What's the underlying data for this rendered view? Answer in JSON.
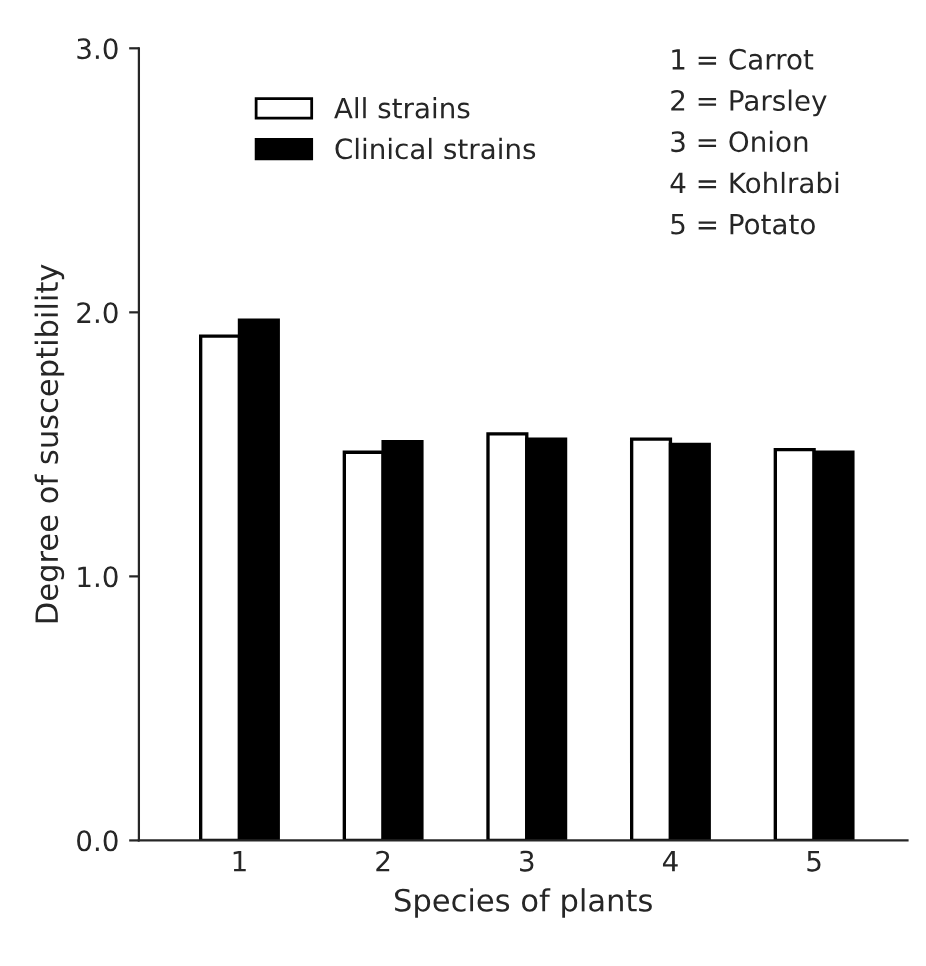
{
  "chart_data": {
    "type": "bar",
    "xlabel": "Species of plants",
    "ylabel": "Degree of susceptibility",
    "categories": [
      "1",
      "2",
      "3",
      "4",
      "5"
    ],
    "series": [
      {
        "name": "All strains",
        "color": "#ffffff",
        "values": [
          1.91,
          1.47,
          1.54,
          1.52,
          1.48
        ]
      },
      {
        "name": "Clinical strains",
        "color": "#000000",
        "values": [
          1.97,
          1.51,
          1.52,
          1.5,
          1.47
        ]
      }
    ],
    "ylim": [
      0,
      3
    ],
    "yticks": [
      {
        "value": 0,
        "label": "0.0"
      },
      {
        "value": 1,
        "label": "1.0"
      },
      {
        "value": 2,
        "label": "2.0"
      },
      {
        "value": 3,
        "label": "3.0"
      }
    ],
    "grid": false,
    "legend": "top left",
    "annotations": [
      "1 = Carrot",
      "2 = Parsley",
      "3 = Onion",
      "4 = Kohlrabi",
      "5 = Potato"
    ]
  }
}
